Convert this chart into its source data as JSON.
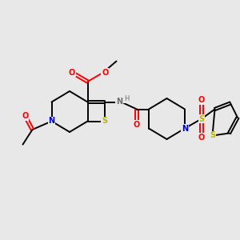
{
  "bg_color": "#e8e8e8",
  "bond_color": "#000000",
  "atom_colors": {
    "N": "#0000cc",
    "S": "#b8b800",
    "O": "#ff0000",
    "H": "#707070",
    "C": "#000000"
  },
  "figsize": [
    3.0,
    3.0
  ],
  "dpi": 100
}
